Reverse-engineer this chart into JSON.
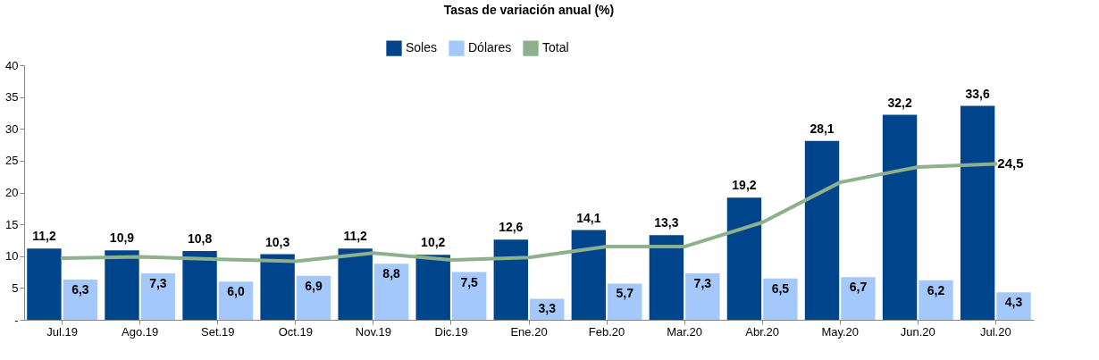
{
  "chart_data": {
    "type": "bar",
    "title": "Tasas de variación anual (%)",
    "categories": [
      "Jul.19",
      "Ago.19",
      "Set.19",
      "Oct.19",
      "Nov.19",
      "Dic.19",
      "Ene.20",
      "Feb.20",
      "Mar.20",
      "Abr.20",
      "May.20",
      "Jun.20",
      "Jul.20"
    ],
    "series": [
      {
        "name": "Soles",
        "color": "#00448c",
        "values": [
          11.2,
          10.9,
          10.8,
          10.3,
          11.2,
          10.2,
          12.6,
          14.1,
          13.3,
          19.2,
          28.1,
          32.2,
          33.6
        ],
        "value_labels": [
          "11,2",
          "10,9",
          "10,8",
          "10,3",
          "11,2",
          "10,2",
          "12,6",
          "14,1",
          "13,3",
          "19,2",
          "28,1",
          "32,2",
          "33,6"
        ]
      },
      {
        "name": "Dólares",
        "color": "#a4c8fb",
        "values": [
          6.3,
          7.3,
          6.0,
          6.9,
          8.8,
          7.5,
          3.3,
          5.7,
          7.3,
          6.5,
          6.7,
          6.2,
          4.3
        ],
        "value_labels": [
          "6,3",
          "7,3",
          "6,0",
          "6,9",
          "8,8",
          "7,5",
          "3,3",
          "5,7",
          "7,3",
          "6,5",
          "6,7",
          "6,2",
          "4,3"
        ]
      },
      {
        "name": "Total",
        "type": "line",
        "color": "#8db08d",
        "values": [
          9.7,
          9.9,
          9.5,
          9.2,
          10.5,
          9.4,
          9.8,
          11.5,
          11.5,
          15.3,
          21.6,
          24.0,
          24.5
        ],
        "value_labels": [
          null,
          null,
          null,
          null,
          null,
          null,
          null,
          null,
          null,
          null,
          null,
          null,
          "24,5"
        ]
      }
    ],
    "ylim": [
      0,
      40
    ],
    "yticks": [
      {
        "value": 0,
        "label": "-"
      },
      5,
      10,
      15,
      20,
      25,
      30,
      35,
      40
    ],
    "grid": false,
    "legend": "top"
  }
}
